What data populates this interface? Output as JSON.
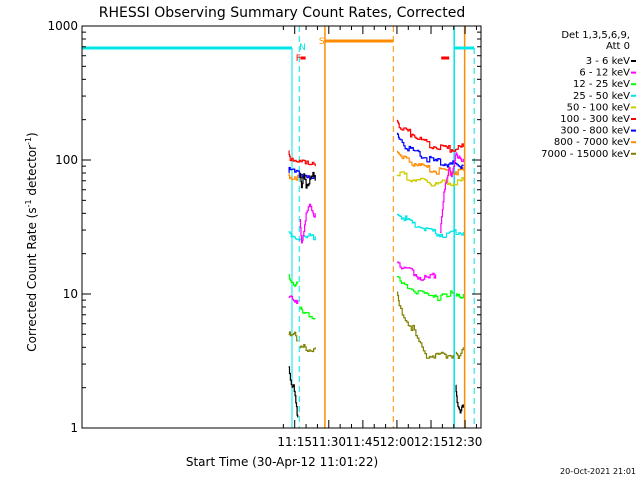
{
  "chart_data": {
    "type": "line",
    "title": "RHESSI Observing Summary Count Rates, Corrected",
    "xlabel": "Start Time (30-Apr-12 11:01:22)",
    "ylabel": "Corrected Count Rate (s⁻¹ detector⁻¹)",
    "ylabel_main": "Corrected Count Rate (s",
    "ylabel_sup1": "-1",
    "ylabel_mid": " detector",
    "ylabel_sup2": "-1",
    "ylabel_end": ")",
    "yscale": "log",
    "xlim_min": [
      1061.37,
      1237
    ],
    "ylim": [
      1,
      1000
    ],
    "x_ticks": [
      {
        "min": 1155,
        "label": "11:15"
      },
      {
        "min": 1170,
        "label": "11:30"
      },
      {
        "min": 1185,
        "label": "11:45"
      },
      {
        "min": 1200,
        "label": "12:00"
      },
      {
        "min": 1215,
        "label": "12:15"
      },
      {
        "min": 1230,
        "label": "12:30"
      }
    ],
    "y_ticks": [
      {
        "value": 1,
        "label": "1"
      },
      {
        "value": 10,
        "label": "10"
      },
      {
        "value": 100,
        "label": "100"
      },
      {
        "value": 1000,
        "label": "1000"
      }
    ],
    "legend": {
      "placement": "right",
      "header": [
        "Det 1,3,5,6,9,",
        "Att 0"
      ],
      "entries": [
        "3 - 6 keV",
        "6 - 12 keV",
        "12 - 25 keV",
        "25 - 50 keV",
        "50 - 100 keV",
        "100 - 300 keV",
        "300 - 800 keV",
        "800 - 7000 keV",
        "7000 - 15000 keV"
      ]
    },
    "flags": [
      {
        "label": "F",
        "color": "#ff0000"
      },
      {
        "label": "N",
        "color": "#00e5e5"
      },
      {
        "label": "S",
        "color": "#ff8c00"
      }
    ],
    "series": [
      {
        "name": "3 - 6 keV",
        "color": "#000000",
        "segments": [
          {
            "x": [
              1152.3,
              1153.5,
              1154.5,
              1155.5,
              1156.3
            ],
            "y": [
              3,
              2,
              2,
              1.5,
              1.2
            ]
          },
          {
            "x": [
              1157.3,
              1158,
              1159,
              1160,
              1161.2,
              1162.5,
              1164
            ],
            "y": [
              80,
              60,
              75,
              65,
              70,
              80,
              70
            ]
          },
          {
            "x": [
              1225.8,
              1226.5,
              1227.5,
              1228.5,
              1229.2
            ],
            "y": [
              2,
              1.5,
              1.3,
              1.5,
              1.5
            ]
          }
        ]
      },
      {
        "name": "6 - 12 keV",
        "color": "#ff00ff",
        "segments": [
          {
            "x": [
              1152.3,
              1153.5,
              1155,
              1156.3
            ],
            "y": [
              9,
              10,
              9,
              9
            ]
          },
          {
            "x": [
              1157.3,
              1158,
              1159,
              1160,
              1161.5,
              1163,
              1164
            ],
            "y": [
              35,
              25,
              30,
              40,
              45,
              38,
              40
            ]
          },
          {
            "x": [
              1200,
              1202,
              1205,
              1208,
              1211,
              1214,
              1217
            ],
            "y": [
              18,
              16,
              15,
              14,
              13,
              13,
              14
            ]
          },
          {
            "x": [
              1219,
              1220,
              1221,
              1222,
              1223,
              1224,
              1225,
              1226,
              1227,
              1228,
              1229.2
            ],
            "y": [
              30,
              45,
              60,
              70,
              85,
              80,
              95,
              110,
              100,
              105,
              102
            ]
          }
        ]
      },
      {
        "name": "12 - 25 keV",
        "color": "#00ff00",
        "segments": [
          {
            "x": [
              1152.3,
              1153.5,
              1155,
              1156.3
            ],
            "y": [
              14,
              12,
              11,
              12
            ]
          },
          {
            "x": [
              1157.3,
              1158.5,
              1160,
              1162,
              1164
            ],
            "y": [
              8,
              7,
              7,
              7,
              6.5
            ]
          },
          {
            "x": [
              1200,
              1202,
              1204,
              1206,
              1208,
              1210,
              1212,
              1214,
              1216,
              1218,
              1220,
              1222,
              1224.8
            ],
            "y": [
              13,
              12,
              11.5,
              11,
              10.5,
              10.5,
              10,
              10,
              10,
              9.5,
              9.5,
              10,
              10
            ]
          },
          {
            "x": [
              1225.8,
              1227,
              1229.2
            ],
            "y": [
              9.5,
              9.5,
              10
            ]
          }
        ]
      },
      {
        "name": "25 - 50 keV",
        "color": "#00e5e5",
        "segments": [
          {
            "x": [
              1152.3,
              1154,
              1156,
              1158,
              1160,
              1162,
              1164
            ],
            "y": [
              28,
              27,
              26,
              27,
              26,
              27,
              27
            ]
          },
          {
            "x": [
              1200,
              1202,
              1205,
              1208,
              1211,
              1214,
              1217,
              1220,
              1223,
              1226,
              1229.2
            ],
            "y": [
              40,
              38,
              35,
              33,
              31,
              30,
              29,
              28,
              28,
              29,
              29
            ]
          }
        ]
      },
      {
        "name": "50 - 100 keV",
        "color": "#cccc00",
        "segments": [
          {
            "x": [
              1200,
              1202,
              1205,
              1208,
              1211,
              1214,
              1217,
              1220,
              1223,
              1226,
              1229.2
            ],
            "y": [
              80,
              78,
              74,
              72,
              70,
              68,
              68,
              67,
              68,
              68,
              70
            ]
          }
        ]
      },
      {
        "name": "100 - 300 keV",
        "color": "#ff0000",
        "segments": [
          {
            "x": [
              1152.3,
              1153,
              1155,
              1157,
              1159,
              1161,
              1164
            ],
            "y": [
              112,
              105,
              100,
              97,
              94,
              92,
              90
            ]
          },
          {
            "x": [
              1200,
              1201,
              1203,
              1206,
              1209,
              1212,
              1215,
              1218,
              1221,
              1224,
              1227,
              1229.2
            ],
            "y": [
              200,
              185,
              170,
              158,
              147,
              138,
              130,
              125,
              122,
              120,
              122,
              125
            ]
          }
        ]
      },
      {
        "name": "300 - 800 keV",
        "color": "#0000ff",
        "segments": [
          {
            "x": [
              1152.3,
              1153,
              1155,
              1157,
              1159,
              1161,
              1164
            ],
            "y": [
              85,
              82,
              80,
              79,
              78,
              77,
              77
            ]
          },
          {
            "x": [
              1200,
              1201,
              1203,
              1206,
              1209,
              1212,
              1215,
              1218,
              1221,
              1224,
              1227,
              1229.2
            ],
            "y": [
              150,
              140,
              130,
              120,
              112,
              105,
              100,
              97,
              95,
              93,
              92,
              92
            ]
          }
        ]
      },
      {
        "name": "800 - 7000 keV",
        "color": "#ff8c00",
        "segments": [
          {
            "x": [
              1152.3,
              1153,
              1155,
              1157,
              1159,
              1161,
              1164
            ],
            "y": [
              78,
              76,
              75,
              74,
              73,
              73,
              72
            ]
          },
          {
            "x": [
              1200,
              1201,
              1203,
              1206,
              1209,
              1212,
              1215,
              1218,
              1221,
              1224,
              1227,
              1229.2
            ],
            "y": [
              120,
              115,
              105,
              98,
              92,
              88,
              85,
              83,
              82,
              82,
              82,
              83
            ]
          }
        ]
      },
      {
        "name": "7000 - 15000 keV",
        "color": "#808000",
        "segments": [
          {
            "x": [
              1152.3,
              1153.5,
              1155,
              1156.3
            ],
            "y": [
              5,
              4.8,
              5,
              4.5
            ]
          },
          {
            "x": [
              1157.3,
              1158.5,
              1160,
              1162,
              1164
            ],
            "y": [
              3.8,
              4,
              4,
              3.8,
              4
            ]
          },
          {
            "x": [
              1200,
              1201,
              1203,
              1205,
              1207,
              1209,
              1211,
              1213,
              1215,
              1217,
              1219,
              1221,
              1223,
              1224.8
            ],
            "y": [
              10,
              8,
              7,
              6,
              5.5,
              4.5,
              4,
              3.5,
              3.5,
              3.5,
              3.5,
              3.5,
              3.5,
              3.5
            ]
          },
          {
            "x": [
              1225.8,
              1227,
              1229.2
            ],
            "y": [
              3.5,
              3.5,
              4
            ]
          }
        ]
      }
    ]
  },
  "footer": {
    "timestamp": "20-Oct-2021 21:01"
  }
}
